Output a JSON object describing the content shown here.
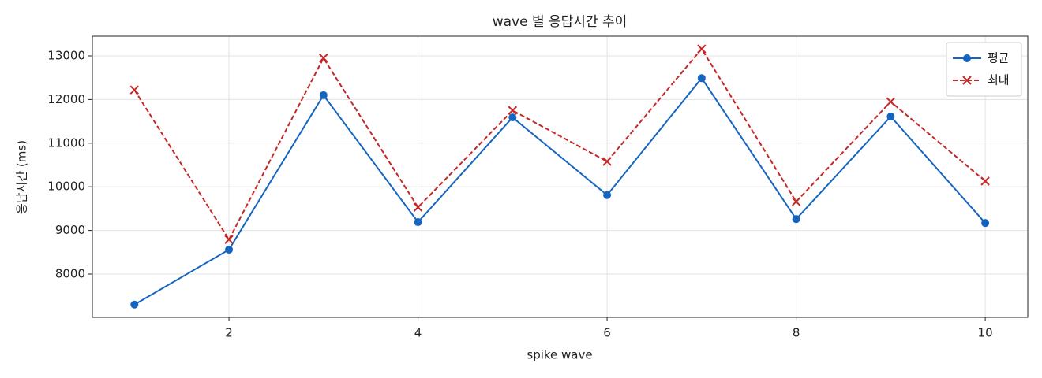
{
  "chart_data": {
    "type": "line",
    "title": "wave 별 응답시간 추이",
    "xlabel": "spike wave",
    "ylabel": "응답시간 (ms)",
    "x": [
      1,
      2,
      3,
      4,
      5,
      6,
      7,
      8,
      9,
      10
    ],
    "series": [
      {
        "name": "평균",
        "color": "#1565c0",
        "marker": "o",
        "linestyle": "solid",
        "values": [
          7300,
          8560,
          12100,
          9190,
          11590,
          9810,
          12490,
          9260,
          11610,
          9170
        ]
      },
      {
        "name": "최대",
        "color": "#c62828",
        "marker": "x",
        "linestyle": "dashed",
        "values": [
          12220,
          8790,
          12950,
          9530,
          11750,
          10580,
          13160,
          9660,
          11950,
          10130
        ]
      }
    ],
    "xlim": [
      0.555,
      10.45
    ],
    "xticks": [
      2,
      4,
      6,
      8,
      10
    ],
    "ylim": [
      7007,
      13451
    ],
    "yticks": [
      8000,
      9000,
      10000,
      11000,
      12000,
      13000
    ],
    "grid": true,
    "legend": "upper right"
  }
}
